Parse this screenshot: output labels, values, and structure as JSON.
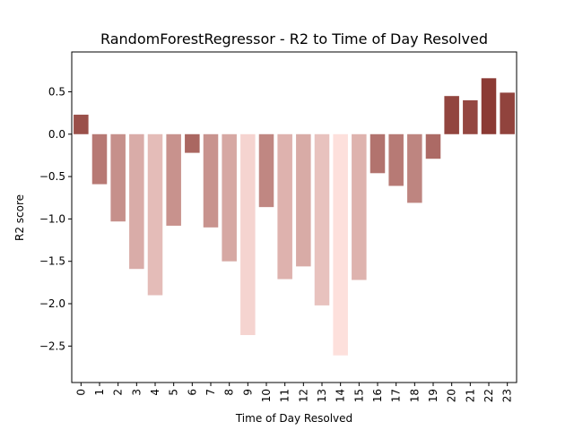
{
  "chart_data": {
    "type": "bar",
    "title": "RandomForestRegressor - R2 to Time of Day Resolved",
    "xlabel": "Time of Day Resolved",
    "ylabel": "R2 score",
    "categories": [
      "0",
      "1",
      "2",
      "3",
      "4",
      "5",
      "6",
      "7",
      "8",
      "9",
      "10",
      "11",
      "12",
      "13",
      "14",
      "15",
      "16",
      "17",
      "18",
      "19",
      "20",
      "21",
      "22",
      "23"
    ],
    "values": [
      0.23,
      -0.59,
      -1.03,
      -1.59,
      -1.9,
      -1.08,
      -0.22,
      -1.1,
      -1.5,
      -2.37,
      -0.86,
      -1.71,
      -1.56,
      -2.02,
      -2.61,
      -1.72,
      -0.46,
      -0.61,
      -0.81,
      -0.29,
      0.45,
      0.4,
      0.66,
      0.49
    ],
    "ylim": [
      -2.93,
      0.97
    ],
    "yticks": [
      0.5,
      0.0,
      -0.5,
      -1.0,
      -1.5,
      -2.0,
      -2.5
    ],
    "ytick_labels": [
      "0.5",
      "0.0",
      "−0.5",
      "−1.0",
      "−1.5",
      "−2.0",
      "−2.5"
    ],
    "grid": false,
    "legend": "none",
    "color_scale": {
      "low": "#fde0dc",
      "high": "#8b3a34"
    }
  }
}
